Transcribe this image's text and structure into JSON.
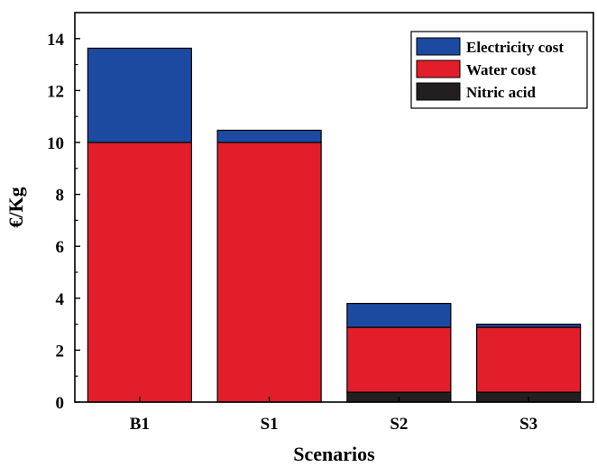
{
  "chart_data": {
    "type": "bar",
    "stacked": true,
    "categories": [
      "B1",
      "S1",
      "S2",
      "S3"
    ],
    "series": [
      {
        "name": "Nitric acid",
        "color": "#231f20",
        "values": [
          0,
          0,
          0.38,
          0.38
        ]
      },
      {
        "name": "Water cost",
        "color": "#e31e2b",
        "values": [
          10.0,
          10.0,
          2.5,
          2.5
        ]
      },
      {
        "name": "Electricity cost",
        "color": "#1c4aa0",
        "values": [
          3.63,
          0.47,
          0.92,
          0.12
        ]
      }
    ],
    "legend_order": [
      "Electricity cost",
      "Water cost",
      "Nitric acid"
    ],
    "xlabel": "Scenarios",
    "ylabel": "€/Kg",
    "ylim": [
      0,
      15
    ],
    "yticks": [
      "0",
      "2",
      "4",
      "6",
      "8",
      "10",
      "12",
      "14"
    ],
    "grid": false,
    "legend_position": "top-right"
  }
}
